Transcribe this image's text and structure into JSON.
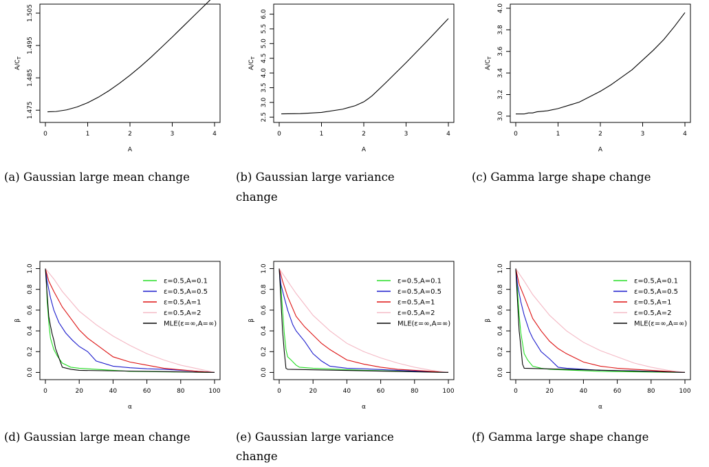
{
  "captions": {
    "a": "(a) Gaussian large mean change",
    "b_line1": "(b)  Gaussian  large  variance",
    "b_line2": "change",
    "c": "(c) Gamma large shape change",
    "d": "(d) Gaussian large mean change",
    "e_line1": "(e)  Gaussian  large  variance",
    "e_line2": "change",
    "f": "(f) Gamma large shape change"
  },
  "chart_data": [
    {
      "id": "a",
      "type": "line",
      "xlabel": "A",
      "ylabel": "A/CT",
      "xlim": [
        0,
        4
      ],
      "ylim": [
        1.4725,
        1.5065
      ],
      "xticks": [
        "0",
        "1",
        "2",
        "3",
        "4"
      ],
      "yticks": [
        "1.475",
        "1.485",
        "1.495",
        "1.505"
      ],
      "series": [
        {
          "color": "#000000",
          "x": [
            0.05,
            0.25,
            0.5,
            0.75,
            1.0,
            1.25,
            1.5,
            1.75,
            2.0,
            2.25,
            2.5,
            2.75,
            3.0,
            3.25,
            3.5,
            3.75,
            4.0
          ],
          "y": [
            1.4745,
            1.4746,
            1.4751,
            1.476,
            1.4773,
            1.479,
            1.481,
            1.4833,
            1.4858,
            1.4885,
            1.4914,
            1.4945,
            1.4976,
            1.5008,
            1.504,
            1.5072,
            1.5104
          ]
        }
      ]
    },
    {
      "id": "b",
      "type": "line",
      "xlabel": "A",
      "ylabel": "A/CT",
      "xlim": [
        0,
        4
      ],
      "ylim": [
        2.46,
        6.2
      ],
      "xticks": [
        "0",
        "1",
        "2",
        "3",
        "4"
      ],
      "yticks": [
        "2.5",
        "3.0",
        "3.5",
        "4.0",
        "4.5",
        "5.0",
        "5.5",
        "6.0"
      ],
      "series": [
        {
          "color": "#000000",
          "x": [
            0.05,
            0.5,
            1.0,
            1.5,
            1.8,
            2.0,
            2.1,
            2.2,
            2.5,
            3.0,
            3.5,
            4.0
          ],
          "y": [
            2.61,
            2.62,
            2.66,
            2.77,
            2.89,
            3.02,
            3.12,
            3.23,
            3.64,
            4.35,
            5.09,
            5.85
          ]
        }
      ]
    },
    {
      "id": "c",
      "type": "line",
      "xlabel": "A",
      "ylabel": "A/CT",
      "xlim": [
        0,
        4
      ],
      "ylim": [
        2.98,
        4.0
      ],
      "xticks": [
        "0",
        "1",
        "2",
        "3",
        "4"
      ],
      "yticks": [
        "3.0",
        "3.2",
        "3.4",
        "3.6",
        "3.8",
        "4.0"
      ],
      "series": [
        {
          "color": "#000000",
          "x": [
            0.0,
            0.2,
            0.3,
            0.4,
            0.5,
            0.75,
            1.0,
            1.25,
            1.5,
            1.75,
            2.0,
            2.25,
            2.5,
            2.75,
            3.0,
            3.25,
            3.5,
            3.75,
            4.0
          ],
          "y": [
            3.02,
            3.02,
            3.03,
            3.03,
            3.04,
            3.05,
            3.07,
            3.1,
            3.13,
            3.18,
            3.23,
            3.29,
            3.36,
            3.43,
            3.52,
            3.61,
            3.71,
            3.83,
            3.96
          ]
        }
      ]
    },
    {
      "id": "d",
      "type": "line",
      "xlabel": "α",
      "ylabel": "β",
      "xlim": [
        0,
        100
      ],
      "ylim": [
        -0.03,
        1.03
      ],
      "xticks": [
        "0",
        "20",
        "40",
        "60",
        "80",
        "100"
      ],
      "yticks": [
        "0.0",
        "0.2",
        "0.4",
        "0.6",
        "0.8",
        "1.0"
      ],
      "legend": {
        "position": "top-right"
      },
      "series": [
        {
          "name": "ε=0.5,A=0.1",
          "color": "#22dd22",
          "x": [
            0,
            0.5,
            1,
            2,
            3,
            5,
            7,
            10,
            15,
            20,
            30,
            50,
            100
          ],
          "y": [
            1.0,
            0.92,
            0.7,
            0.48,
            0.33,
            0.22,
            0.16,
            0.09,
            0.05,
            0.04,
            0.03,
            0.01,
            0.0
          ]
        },
        {
          "name": "ε=0.5,A=0.5",
          "color": "#1a1acc",
          "x": [
            0,
            1,
            3,
            5,
            8,
            12,
            16,
            20,
            25,
            30,
            40,
            50,
            60,
            70,
            80,
            90,
            100
          ],
          "y": [
            1.0,
            0.88,
            0.72,
            0.6,
            0.48,
            0.38,
            0.31,
            0.25,
            0.2,
            0.11,
            0.06,
            0.045,
            0.035,
            0.03,
            0.02,
            0.01,
            0.0
          ]
        },
        {
          "name": "ε=0.5,A=1",
          "color": "#dd1111",
          "x": [
            0,
            2,
            5,
            10,
            15,
            20,
            25,
            30,
            40,
            50,
            60,
            70,
            80,
            90,
            100
          ],
          "y": [
            1.0,
            0.88,
            0.78,
            0.63,
            0.52,
            0.41,
            0.33,
            0.27,
            0.15,
            0.1,
            0.07,
            0.04,
            0.025,
            0.01,
            0.0
          ]
        },
        {
          "name": "ε=0.5,A=2",
          "color": "#f4b8c4",
          "x": [
            0,
            5,
            10,
            20,
            30,
            40,
            50,
            60,
            70,
            80,
            90,
            100
          ],
          "y": [
            1.0,
            0.9,
            0.78,
            0.59,
            0.46,
            0.35,
            0.26,
            0.18,
            0.12,
            0.07,
            0.035,
            0.0
          ]
        },
        {
          "name": "MLE(ε=∞,A=∞)",
          "color": "#000000",
          "x": [
            0,
            0.5,
            1,
            1.5,
            2,
            3,
            4,
            5,
            6,
            8,
            10,
            15,
            20,
            100
          ],
          "y": [
            1.0,
            0.88,
            0.76,
            0.65,
            0.54,
            0.45,
            0.37,
            0.31,
            0.23,
            0.14,
            0.05,
            0.03,
            0.02,
            0.0
          ]
        }
      ]
    },
    {
      "id": "e",
      "type": "line",
      "xlabel": "α",
      "ylabel": "β",
      "xlim": [
        0,
        100
      ],
      "ylim": [
        -0.03,
        1.03
      ],
      "xticks": [
        "0",
        "20",
        "40",
        "60",
        "80",
        "100"
      ],
      "yticks": [
        "0.0",
        "0.2",
        "0.4",
        "0.6",
        "0.8",
        "1.0"
      ],
      "legend": {
        "position": "top-right"
      },
      "series": [
        {
          "name": "ε=0.5,A=0.1",
          "color": "#22dd22",
          "x": [
            0,
            1,
            2,
            3,
            4,
            5,
            7,
            10,
            12,
            20,
            50,
            100
          ],
          "y": [
            1.0,
            0.82,
            0.6,
            0.38,
            0.22,
            0.15,
            0.12,
            0.07,
            0.05,
            0.04,
            0.02,
            0.0
          ]
        },
        {
          "name": "ε=0.5,A=0.5",
          "color": "#1a1acc",
          "x": [
            0,
            1,
            3,
            5,
            8,
            10,
            15,
            20,
            25,
            30,
            40,
            50,
            70,
            100
          ],
          "y": [
            1.0,
            0.85,
            0.72,
            0.6,
            0.46,
            0.4,
            0.3,
            0.18,
            0.11,
            0.06,
            0.04,
            0.035,
            0.02,
            0.0
          ]
        },
        {
          "name": "ε=0.5,A=1",
          "color": "#dd1111",
          "x": [
            0,
            2,
            5,
            10,
            15,
            20,
            25,
            30,
            40,
            50,
            60,
            70,
            80,
            90,
            100
          ],
          "y": [
            1.0,
            0.88,
            0.73,
            0.54,
            0.44,
            0.36,
            0.28,
            0.22,
            0.12,
            0.08,
            0.05,
            0.03,
            0.02,
            0.01,
            0.0
          ]
        },
        {
          "name": "ε=0.5,A=2",
          "color": "#f4b8c4",
          "x": [
            0,
            5,
            10,
            20,
            30,
            40,
            50,
            60,
            70,
            80,
            90,
            100
          ],
          "y": [
            1.0,
            0.88,
            0.76,
            0.55,
            0.4,
            0.28,
            0.2,
            0.14,
            0.09,
            0.05,
            0.02,
            0.0
          ]
        },
        {
          "name": "MLE(ε=∞,A=∞)",
          "color": "#000000",
          "x": [
            0,
            0.5,
            1,
            1.5,
            2,
            2.5,
            3,
            4,
            5,
            100
          ],
          "y": [
            1.0,
            0.86,
            0.7,
            0.55,
            0.4,
            0.3,
            0.2,
            0.04,
            0.03,
            0.0
          ]
        }
      ]
    },
    {
      "id": "f",
      "type": "line",
      "xlabel": "α",
      "ylabel": "β",
      "xlim": [
        0,
        100
      ],
      "ylim": [
        -0.03,
        1.03
      ],
      "xticks": [
        "0",
        "20",
        "40",
        "60",
        "80",
        "100"
      ],
      "yticks": [
        "0.0",
        "0.2",
        "0.4",
        "0.6",
        "0.8",
        "1.0"
      ],
      "legend": {
        "position": "top-right"
      },
      "series": [
        {
          "name": "ε=0.5,A=0.1",
          "color": "#22dd22",
          "x": [
            0,
            1,
            2,
            3,
            4,
            5,
            7,
            10,
            15,
            20,
            50,
            100
          ],
          "y": [
            1.0,
            0.8,
            0.55,
            0.38,
            0.28,
            0.18,
            0.12,
            0.06,
            0.04,
            0.03,
            0.01,
            0.0
          ]
        },
        {
          "name": "ε=0.5,A=0.5",
          "color": "#1a1acc",
          "x": [
            0,
            1,
            3,
            5,
            8,
            10,
            15,
            20,
            25,
            30,
            40,
            50,
            70,
            100
          ],
          "y": [
            1.0,
            0.85,
            0.68,
            0.55,
            0.4,
            0.33,
            0.2,
            0.13,
            0.05,
            0.04,
            0.03,
            0.02,
            0.015,
            0.0
          ]
        },
        {
          "name": "ε=0.5,A=1",
          "color": "#dd1111",
          "x": [
            0,
            2,
            5,
            10,
            15,
            20,
            25,
            30,
            40,
            50,
            60,
            70,
            80,
            90,
            100
          ],
          "y": [
            1.0,
            0.85,
            0.73,
            0.52,
            0.4,
            0.3,
            0.23,
            0.18,
            0.1,
            0.06,
            0.04,
            0.03,
            0.02,
            0.01,
            0.0
          ]
        },
        {
          "name": "ε=0.5,A=2",
          "color": "#f4b8c4",
          "x": [
            0,
            5,
            10,
            20,
            30,
            40,
            50,
            60,
            70,
            80,
            90,
            100
          ],
          "y": [
            1.0,
            0.88,
            0.75,
            0.55,
            0.4,
            0.29,
            0.21,
            0.15,
            0.09,
            0.05,
            0.02,
            0.0
          ]
        },
        {
          "name": "MLE(ε=∞,A=∞)",
          "color": "#000000",
          "x": [
            0,
            0.5,
            1,
            1.5,
            2,
            3,
            4,
            5,
            100
          ],
          "y": [
            1.0,
            0.85,
            0.7,
            0.55,
            0.4,
            0.25,
            0.08,
            0.04,
            0.0
          ]
        }
      ]
    }
  ]
}
